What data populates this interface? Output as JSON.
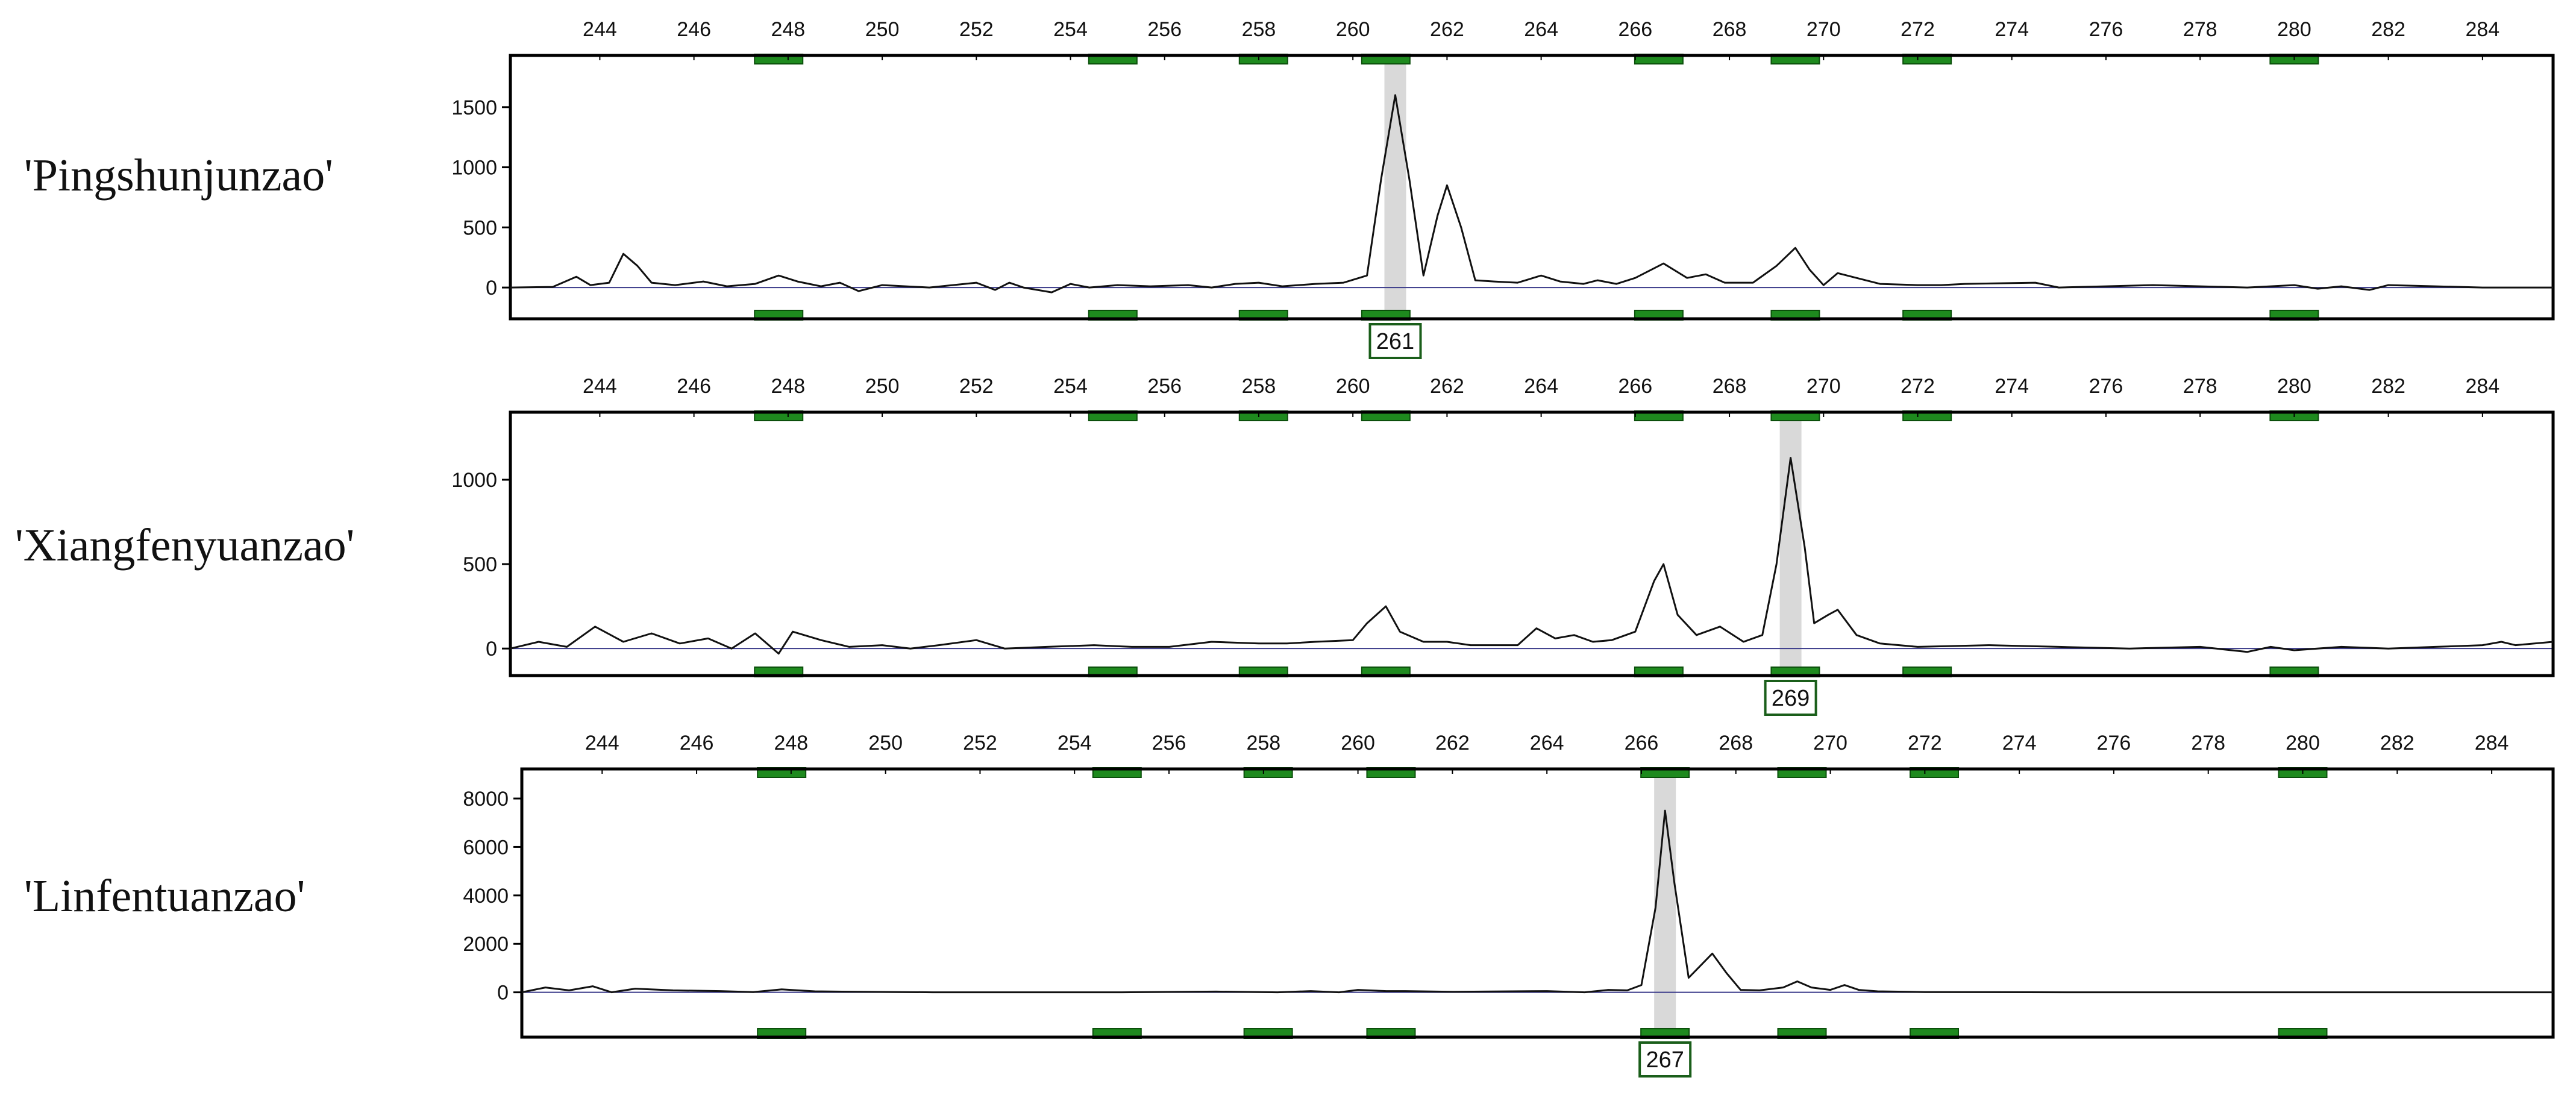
{
  "chart_data": [
    {
      "type": "line",
      "sample_label": "'Pingshunjunzao'",
      "x_ticks": [
        244,
        246,
        248,
        250,
        252,
        254,
        256,
        258,
        260,
        262,
        264,
        266,
        268,
        270,
        272,
        274,
        276,
        278,
        280,
        282,
        284
      ],
      "y_ticks": [
        0,
        500,
        1000,
        1500
      ],
      "xlim": [
        242.1,
        285.5
      ],
      "ylim": [
        -260,
        1930
      ],
      "bins": [
        247.8,
        254.9,
        258.1,
        260.7,
        266.5,
        269.4,
        272.2,
        280.0
      ],
      "allele_call": {
        "label": "261",
        "x": 260.9
      },
      "series": [
        {
          "points": [
            [
              242.1,
              0
            ],
            [
              243.0,
              5
            ],
            [
              243.5,
              90
            ],
            [
              243.8,
              20
            ],
            [
              244.2,
              40
            ],
            [
              244.5,
              280
            ],
            [
              244.8,
              180
            ],
            [
              245.1,
              40
            ],
            [
              245.6,
              20
            ],
            [
              246.2,
              50
            ],
            [
              246.7,
              10
            ],
            [
              247.3,
              30
            ],
            [
              247.8,
              100
            ],
            [
              248.2,
              50
            ],
            [
              248.7,
              10
            ],
            [
              249.1,
              40
            ],
            [
              249.5,
              -30
            ],
            [
              250.0,
              20
            ],
            [
              251.0,
              0
            ],
            [
              252.0,
              40
            ],
            [
              252.4,
              -20
            ],
            [
              252.7,
              40
            ],
            [
              253.0,
              0
            ],
            [
              253.6,
              -40
            ],
            [
              254.0,
              30
            ],
            [
              254.4,
              0
            ],
            [
              255.0,
              20
            ],
            [
              255.7,
              10
            ],
            [
              256.5,
              20
            ],
            [
              257.0,
              0
            ],
            [
              257.5,
              30
            ],
            [
              258.0,
              40
            ],
            [
              258.5,
              10
            ],
            [
              259.2,
              30
            ],
            [
              259.8,
              40
            ],
            [
              260.3,
              100
            ],
            [
              260.6,
              900
            ],
            [
              260.9,
              1600
            ],
            [
              261.2,
              900
            ],
            [
              261.5,
              100
            ],
            [
              261.8,
              600
            ],
            [
              262.0,
              850
            ],
            [
              262.3,
              500
            ],
            [
              262.6,
              60
            ],
            [
              263.0,
              50
            ],
            [
              263.5,
              40
            ],
            [
              264.0,
              100
            ],
            [
              264.4,
              50
            ],
            [
              264.9,
              30
            ],
            [
              265.2,
              60
            ],
            [
              265.6,
              30
            ],
            [
              266.0,
              80
            ],
            [
              266.6,
              200
            ],
            [
              267.1,
              80
            ],
            [
              267.5,
              110
            ],
            [
              267.9,
              40
            ],
            [
              268.5,
              40
            ],
            [
              269.0,
              180
            ],
            [
              269.4,
              330
            ],
            [
              269.7,
              150
            ],
            [
              270.0,
              20
            ],
            [
              270.3,
              120
            ],
            [
              270.7,
              80
            ],
            [
              271.2,
              30
            ],
            [
              272.0,
              20
            ],
            [
              272.5,
              20
            ],
            [
              273.0,
              30
            ],
            [
              274.5,
              40
            ],
            [
              275.0,
              0
            ],
            [
              276.0,
              10
            ],
            [
              277.0,
              20
            ],
            [
              278.0,
              10
            ],
            [
              279.0,
              0
            ],
            [
              280.0,
              20
            ],
            [
              280.5,
              -10
            ],
            [
              281.0,
              10
            ],
            [
              281.6,
              -20
            ],
            [
              282.0,
              20
            ],
            [
              283.0,
              10
            ],
            [
              284.0,
              0
            ],
            [
              285.5,
              0
            ]
          ]
        }
      ]
    },
    {
      "type": "line",
      "sample_label": "'Xiangfenyuanzao'",
      "x_ticks": [
        244,
        246,
        248,
        250,
        252,
        254,
        256,
        258,
        260,
        262,
        264,
        266,
        268,
        270,
        272,
        274,
        276,
        278,
        280,
        282,
        284
      ],
      "y_ticks": [
        0,
        500,
        1000
      ],
      "xlim": [
        242.1,
        285.5
      ],
      "ylim": [
        -160,
        1400
      ],
      "bins": [
        247.8,
        254.9,
        258.1,
        260.7,
        266.5,
        269.4,
        272.2,
        280.0
      ],
      "allele_call": {
        "label": "269",
        "x": 269.3
      },
      "series": [
        {
          "points": [
            [
              242.1,
              0
            ],
            [
              242.7,
              40
            ],
            [
              243.3,
              10
            ],
            [
              243.9,
              130
            ],
            [
              244.5,
              40
            ],
            [
              245.1,
              90
            ],
            [
              245.7,
              30
            ],
            [
              246.3,
              60
            ],
            [
              246.8,
              0
            ],
            [
              247.3,
              90
            ],
            [
              247.8,
              -30
            ],
            [
              248.1,
              100
            ],
            [
              248.7,
              50
            ],
            [
              249.3,
              10
            ],
            [
              250.0,
              20
            ],
            [
              250.6,
              0
            ],
            [
              251.2,
              20
            ],
            [
              252.0,
              50
            ],
            [
              252.6,
              0
            ],
            [
              253.5,
              10
            ],
            [
              254.5,
              20
            ],
            [
              255.3,
              10
            ],
            [
              256.1,
              10
            ],
            [
              257.0,
              40
            ],
            [
              258.0,
              30
            ],
            [
              258.6,
              30
            ],
            [
              259.2,
              40
            ],
            [
              260.0,
              50
            ],
            [
              260.3,
              150
            ],
            [
              260.7,
              250
            ],
            [
              261.0,
              100
            ],
            [
              261.5,
              40
            ],
            [
              262.0,
              40
            ],
            [
              262.5,
              20
            ],
            [
              263.0,
              20
            ],
            [
              263.5,
              20
            ],
            [
              263.9,
              120
            ],
            [
              264.3,
              60
            ],
            [
              264.7,
              80
            ],
            [
              265.1,
              40
            ],
            [
              265.5,
              50
            ],
            [
              266.0,
              100
            ],
            [
              266.4,
              400
            ],
            [
              266.6,
              500
            ],
            [
              266.9,
              200
            ],
            [
              267.3,
              80
            ],
            [
              267.8,
              130
            ],
            [
              268.3,
              40
            ],
            [
              268.7,
              80
            ],
            [
              269.0,
              500
            ],
            [
              269.3,
              1130
            ],
            [
              269.6,
              600
            ],
            [
              269.8,
              150
            ],
            [
              270.1,
              200
            ],
            [
              270.3,
              230
            ],
            [
              270.7,
              80
            ],
            [
              271.2,
              30
            ],
            [
              272.0,
              10
            ],
            [
              273.5,
              20
            ],
            [
              275.0,
              10
            ],
            [
              276.5,
              0
            ],
            [
              278.0,
              10
            ],
            [
              279.0,
              -20
            ],
            [
              279.5,
              10
            ],
            [
              280.0,
              -10
            ],
            [
              281.0,
              10
            ],
            [
              282.0,
              0
            ],
            [
              283.0,
              10
            ],
            [
              284.0,
              20
            ],
            [
              284.4,
              40
            ],
            [
              284.7,
              20
            ],
            [
              285.5,
              40
            ]
          ]
        }
      ]
    },
    {
      "type": "line",
      "sample_label": "'Linfentuanzao'",
      "x_ticks": [
        244,
        246,
        248,
        250,
        252,
        254,
        256,
        258,
        260,
        262,
        264,
        266,
        268,
        270,
        272,
        274,
        276,
        278,
        280,
        282,
        284
      ],
      "y_ticks": [
        0,
        2000,
        4000,
        6000,
        8000
      ],
      "xlim": [
        242.3,
        285.3
      ],
      "ylim": [
        -1850,
        9220
      ],
      "bins": [
        247.8,
        254.9,
        258.1,
        260.7,
        266.5,
        269.4,
        272.2,
        280.0
      ],
      "allele_call": {
        "label": "267",
        "x": 266.5
      },
      "series": [
        {
          "points": [
            [
              242.3,
              0
            ],
            [
              242.8,
              200
            ],
            [
              243.3,
              80
            ],
            [
              243.8,
              250
            ],
            [
              244.2,
              0
            ],
            [
              244.7,
              150
            ],
            [
              245.5,
              80
            ],
            [
              246.5,
              50
            ],
            [
              247.2,
              10
            ],
            [
              247.8,
              120
            ],
            [
              248.5,
              40
            ],
            [
              249.5,
              20
            ],
            [
              251.0,
              0
            ],
            [
              253.0,
              0
            ],
            [
              255.0,
              0
            ],
            [
              257.0,
              30
            ],
            [
              258.3,
              0
            ],
            [
              259.0,
              50
            ],
            [
              259.6,
              0
            ],
            [
              260.0,
              100
            ],
            [
              260.6,
              50
            ],
            [
              261.0,
              50
            ],
            [
              262.0,
              20
            ],
            [
              264.0,
              50
            ],
            [
              264.8,
              0
            ],
            [
              265.3,
              100
            ],
            [
              265.7,
              80
            ],
            [
              266.0,
              300
            ],
            [
              266.3,
              3500
            ],
            [
              266.5,
              7500
            ],
            [
              266.7,
              4500
            ],
            [
              267.0,
              600
            ],
            [
              267.3,
              1200
            ],
            [
              267.5,
              1600
            ],
            [
              267.8,
              800
            ],
            [
              268.1,
              100
            ],
            [
              268.5,
              80
            ],
            [
              269.0,
              200
            ],
            [
              269.3,
              450
            ],
            [
              269.6,
              200
            ],
            [
              270.0,
              100
            ],
            [
              270.3,
              300
            ],
            [
              270.6,
              100
            ],
            [
              271.0,
              40
            ],
            [
              272.0,
              10
            ],
            [
              275.0,
              0
            ],
            [
              280.0,
              0
            ],
            [
              285.3,
              0
            ]
          ]
        }
      ]
    }
  ]
}
